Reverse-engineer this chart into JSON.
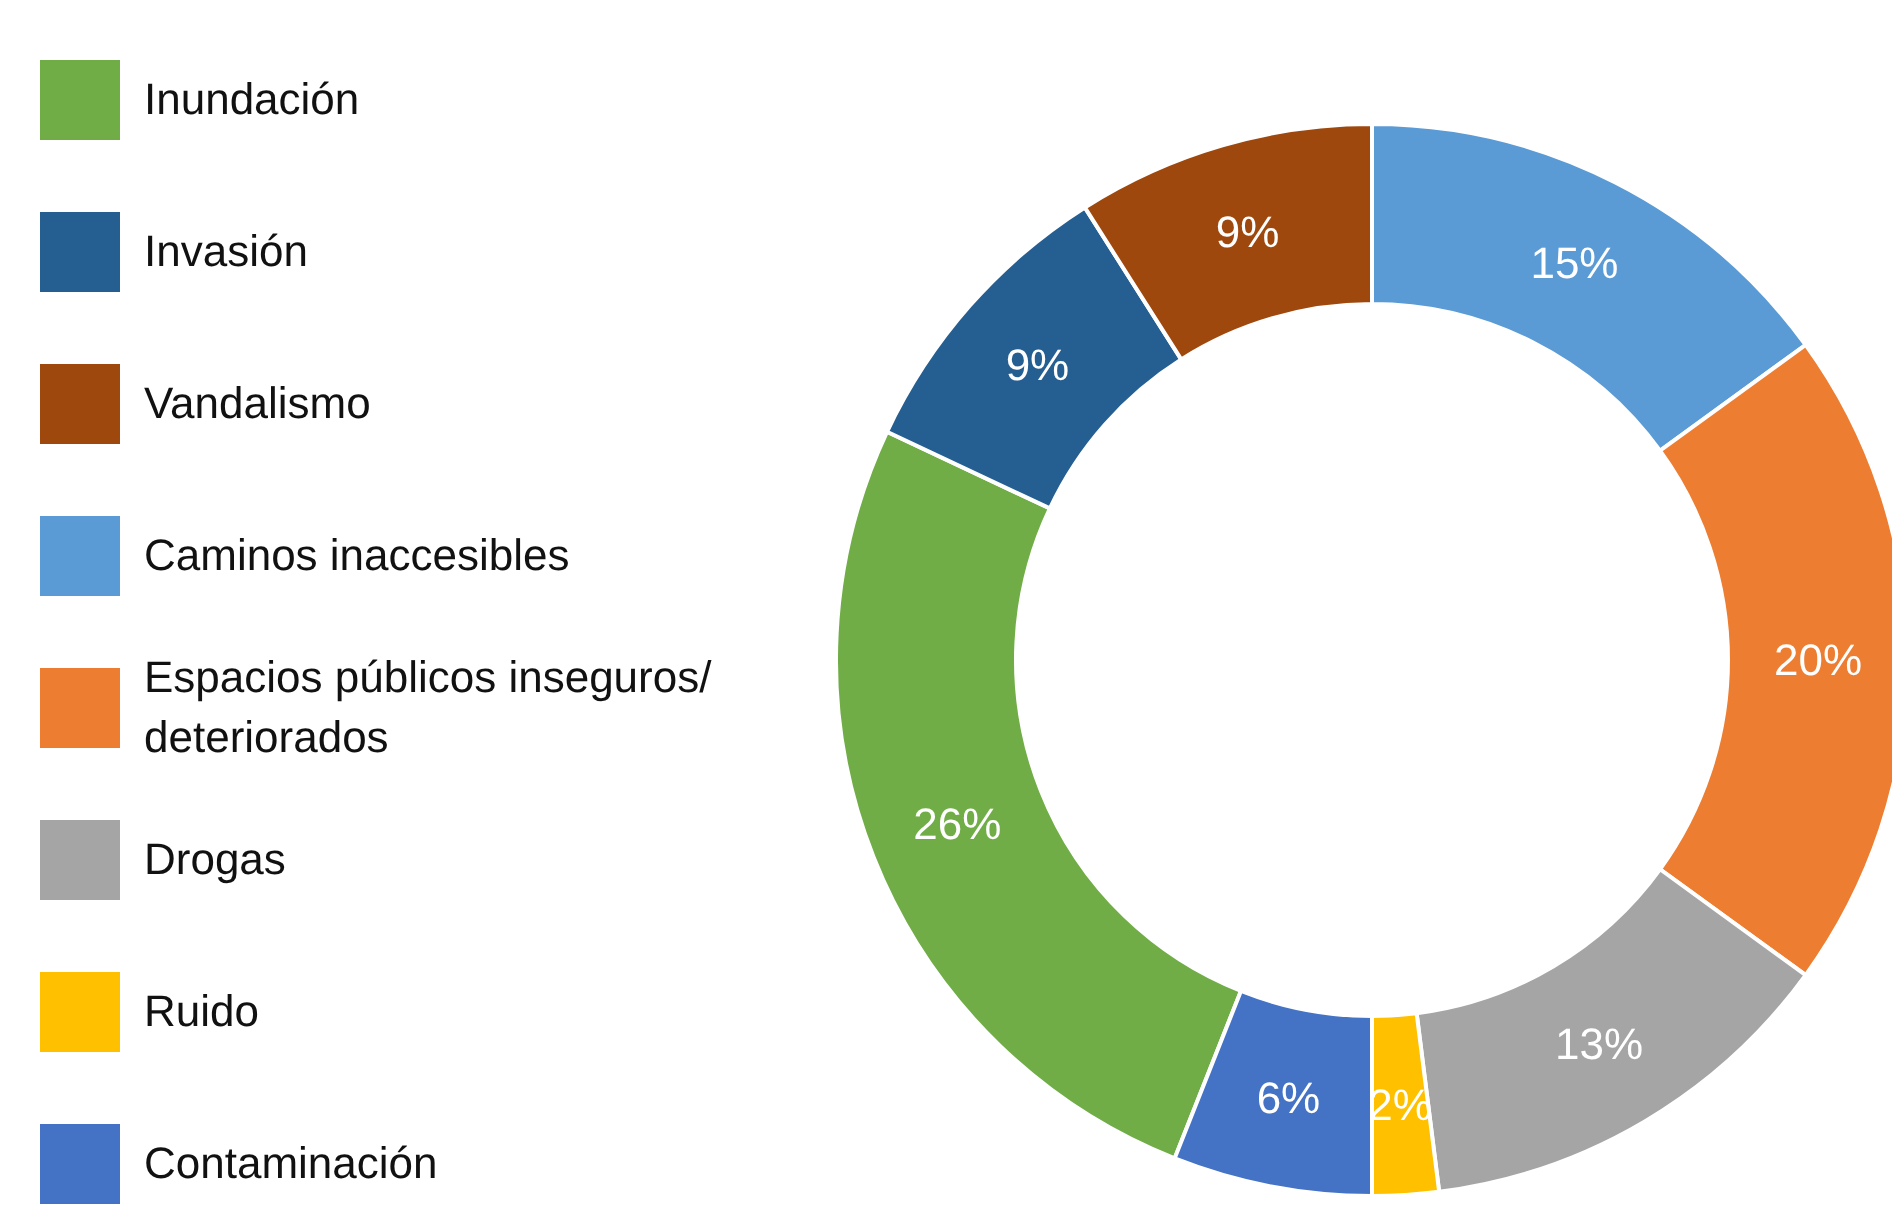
{
  "chart_data": {
    "type": "donut",
    "categories": [
      "Inundación",
      "Invasión",
      "Vandalismo",
      "Caminos inaccesibles",
      "Espacios públicos inseguros/ deteriorados",
      "Drogas",
      "Ruido",
      "Contaminación"
    ],
    "values": [
      26,
      9,
      9,
      15,
      20,
      13,
      2,
      6
    ],
    "colors": [
      "#70ad47",
      "#255e91",
      "#9e480e",
      "#5b9bd5",
      "#ed7d31",
      "#a5a5a5",
      "#ffc000",
      "#4472c4"
    ],
    "value_labels": [
      "26%",
      "9%",
      "9%",
      "15%",
      "20%",
      "13%",
      "2%",
      "6%"
    ],
    "legend": "left"
  }
}
